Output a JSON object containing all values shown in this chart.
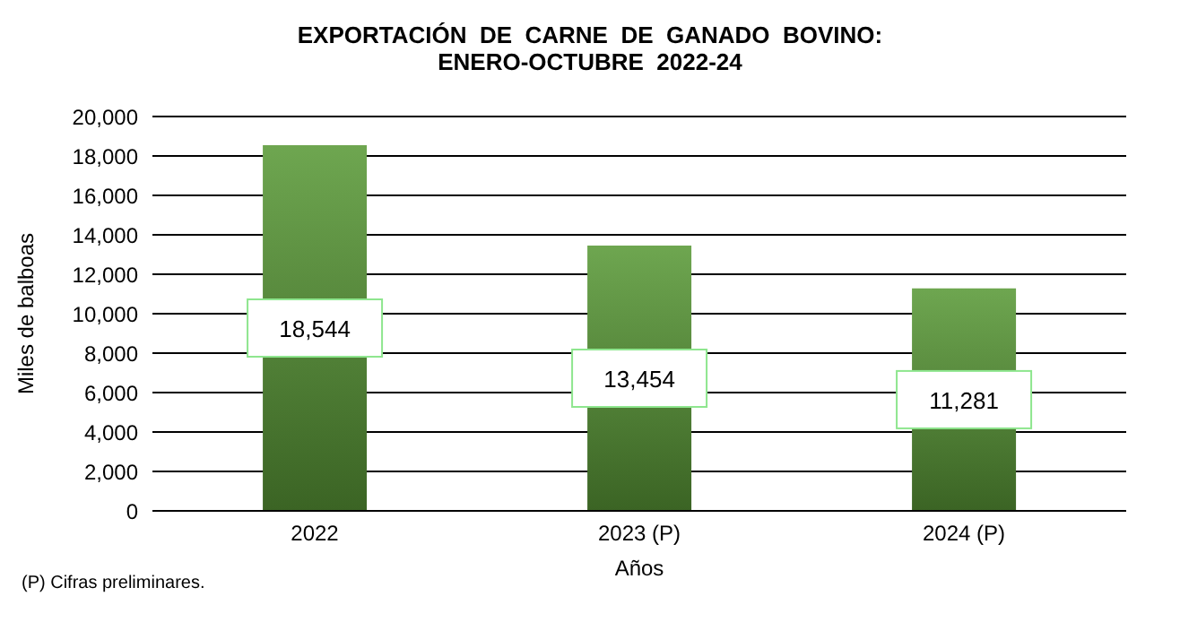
{
  "chart_data": {
    "type": "bar",
    "title": "EXPORTACIÓN  DE  CARNE  DE  GANADO  BOVINO:\nENERO-OCTUBRE  2022-24",
    "xlabel": "Años",
    "ylabel": "Miles de balboas",
    "categories": [
      "2022",
      "2023 (P)",
      "2024 (P)"
    ],
    "values": [
      18544,
      13454,
      11281
    ],
    "color": "#5a9a38",
    "ylim": [
      0,
      20000
    ],
    "yticks": [
      {
        "value": 0,
        "label": "0"
      },
      {
        "value": 2000,
        "label": "2,000"
      },
      {
        "value": 4000,
        "label": "4,000"
      },
      {
        "value": 6000,
        "label": "6,000"
      },
      {
        "value": 8000,
        "label": "8,000"
      },
      {
        "value": 10000,
        "label": "10,000"
      },
      {
        "value": 12000,
        "label": "12,000"
      },
      {
        "value": 14000,
        "label": "14,000"
      },
      {
        "value": 16000,
        "label": "16,000"
      },
      {
        "value": 18000,
        "label": "18,000"
      },
      {
        "value": 20000,
        "label": "20,000"
      }
    ],
    "grid": "y",
    "value_labels": [
      "18,544",
      "13,454",
      "11,281"
    ],
    "annotations": [
      "(P) Cifras preliminares."
    ]
  }
}
